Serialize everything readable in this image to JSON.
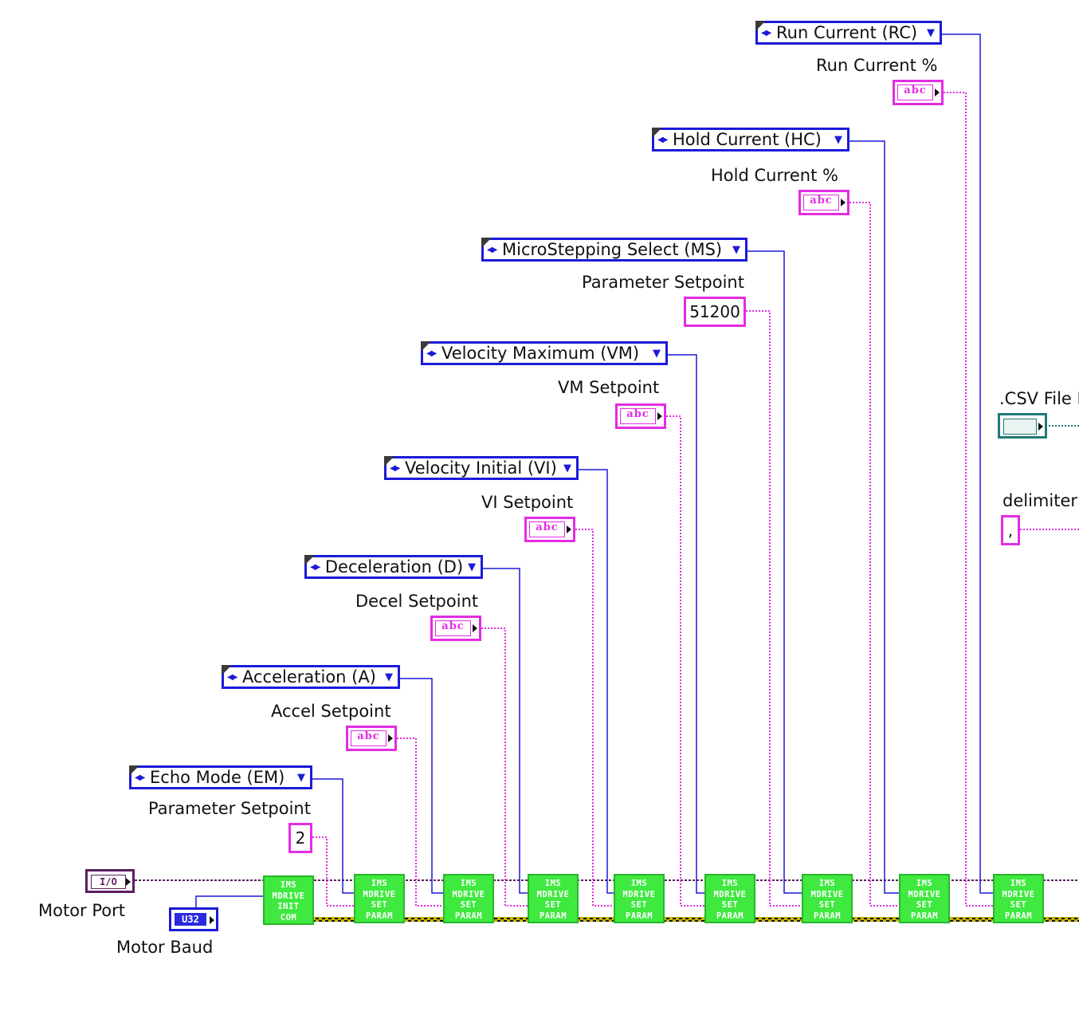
{
  "rings": [
    {
      "label": "Run Current (RC)"
    },
    {
      "label": "Hold Current (HC)"
    },
    {
      "label": "MicroStepping Select (MS)"
    },
    {
      "label": "Velocity Maximum (VM)"
    },
    {
      "label": "Velocity Initial (VI)"
    },
    {
      "label": "Deceleration (D)"
    },
    {
      "label": "Acceleration (A)"
    },
    {
      "label": "Echo Mode (EM)"
    }
  ],
  "setpoint_labels": [
    "Run Current %",
    "Hold Current %",
    "Parameter Setpoint",
    "VM Setpoint",
    "VI Setpoint",
    "Decel Setpoint",
    "Accel Setpoint",
    "Parameter Setpoint"
  ],
  "string_glyph": "abc",
  "constants": {
    "ms_setpoint": "51200",
    "em_setpoint": "2",
    "delimiter": ","
  },
  "inputs": {
    "motor_port_label": "Motor Port",
    "motor_port_type": "I/O",
    "motor_baud_label": "Motor Baud",
    "motor_baud_type": "U32",
    "csv_file_label": ".CSV File P",
    "delimiter_label": "delimiter"
  },
  "subvis": {
    "init": [
      "IMS",
      "MDRIVE",
      "INIT",
      "COM"
    ],
    "set": [
      "IMS",
      "MDRIVE",
      "SET",
      "PARAM"
    ]
  },
  "colors": {
    "enum_wire": "#1c1ad8",
    "string_wire": "#e22de3",
    "refnum_wire": "#5c1d5f",
    "error_wire": "#c8b400",
    "path_wire": "#1f7a76",
    "subvi_fill": "#3fe93f"
  }
}
